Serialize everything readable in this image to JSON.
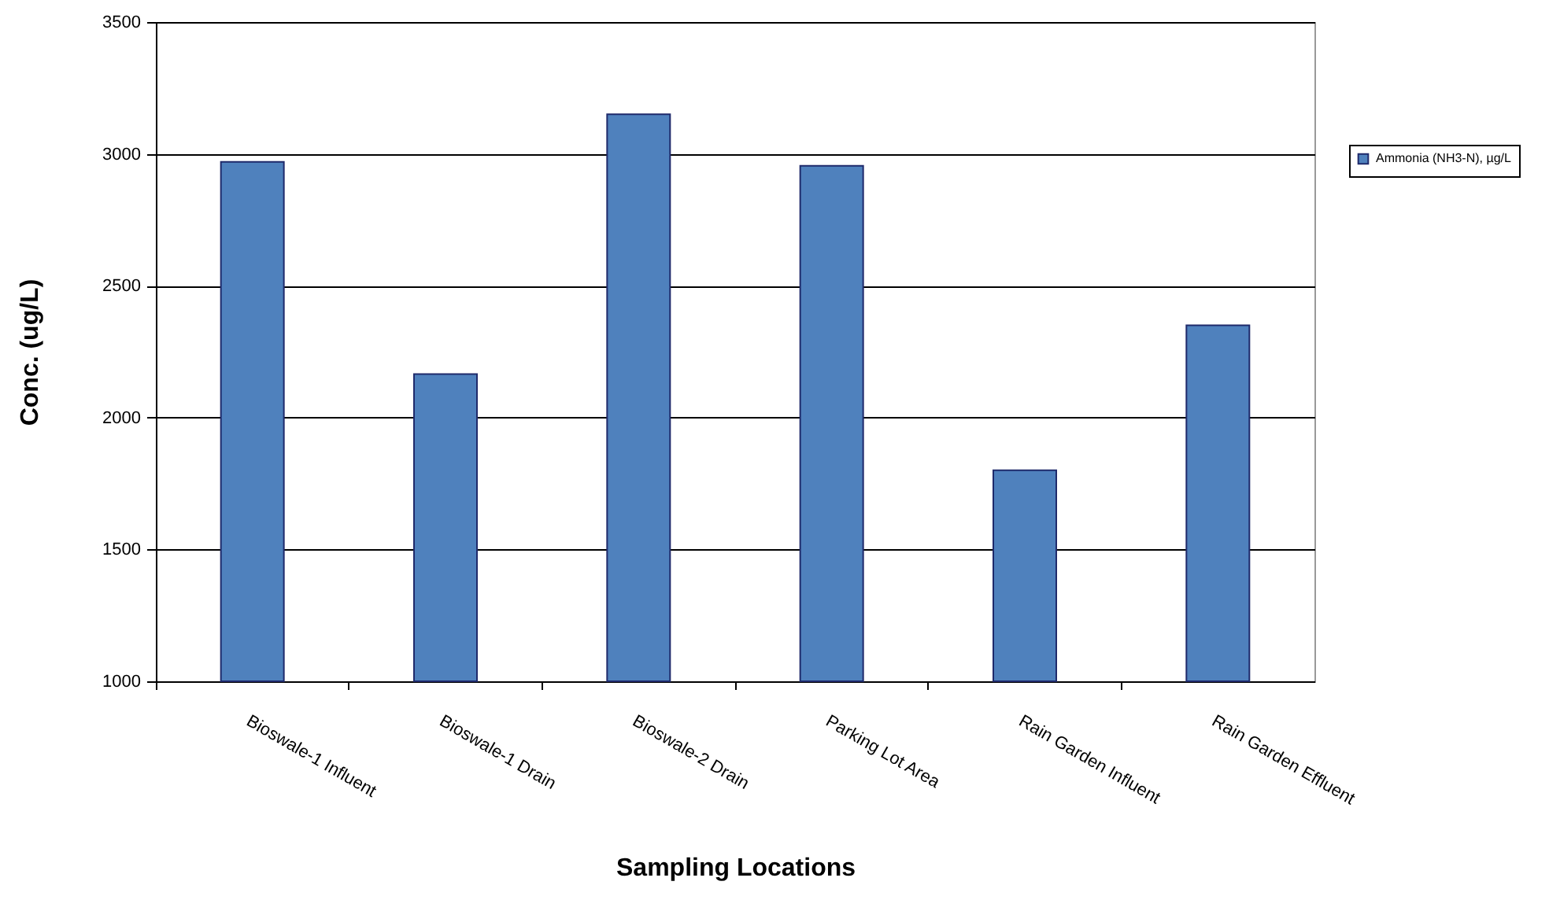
{
  "chart_data": {
    "type": "bar",
    "xlabel": "Sampling Locations",
    "ylabel": "Conc. (ug/L)",
    "categories": [
      "Bioswale-1 Influent",
      "Bioswale-1 Drain",
      "Bioswale-2 Drain",
      "Parking Lot Area",
      "Rain Garden Influent",
      "Rain Garden Effluent"
    ],
    "series": [
      {
        "name": "Ammonia (NH3-N), µg/L",
        "color": "#4f81bd",
        "values": [
          2970,
          2165,
          3150,
          2955,
          1800,
          2350
        ]
      }
    ],
    "ylim": [
      1000,
      3500
    ],
    "yticks": [
      1000,
      1500,
      2000,
      2500,
      3000,
      3500
    ],
    "grid": "y",
    "legend": "right"
  }
}
